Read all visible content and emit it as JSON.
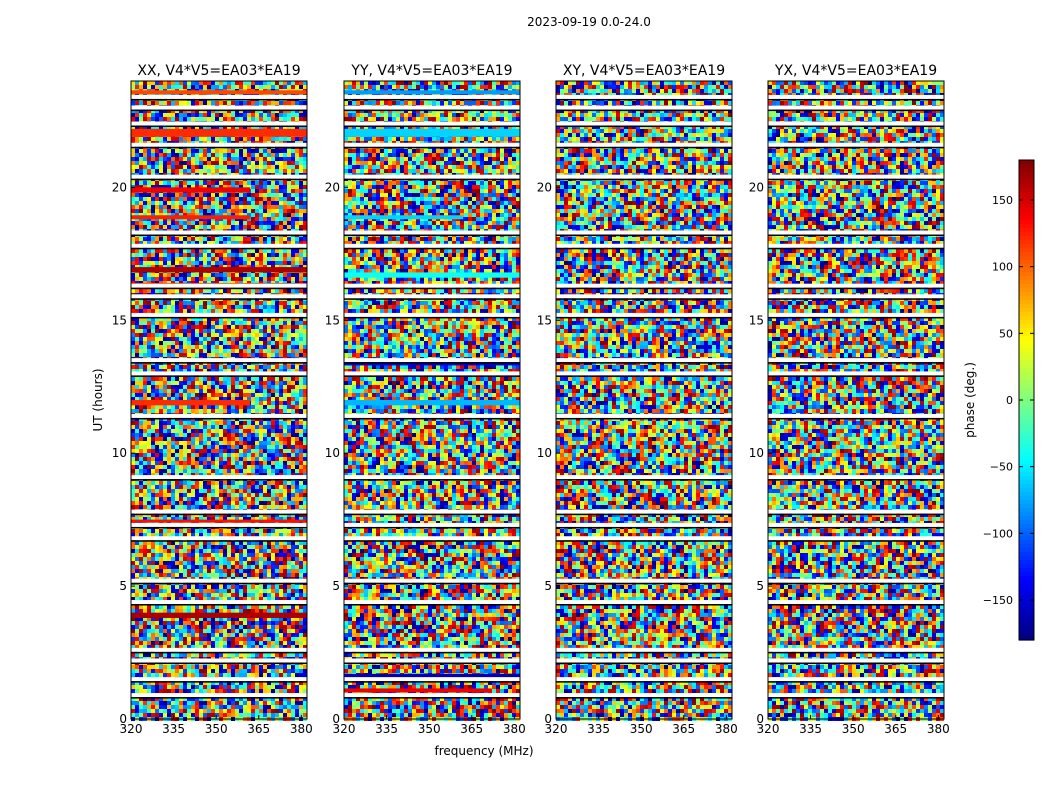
{
  "chart_data": {
    "type": "heatmap",
    "suptitle": "2023-09-19 0.0-24.0",
    "xlabel": "frequency (MHz)",
    "ylabel": "UT (hours)",
    "xlim": [
      320,
      382
    ],
    "ylim": [
      0,
      24
    ],
    "x_ticks": [
      320,
      335,
      350,
      365,
      380
    ],
    "y_ticks": [
      0,
      5,
      10,
      15,
      20
    ],
    "colorbar": {
      "label": "phase (deg.)",
      "range": [
        -180,
        180
      ],
      "ticks": [
        150,
        100,
        50,
        0,
        -50,
        -100,
        -150
      ],
      "tick_labels": [
        "150",
        "100",
        "50",
        "0",
        "−50",
        "−100",
        "−150"
      ],
      "colormap": "jet",
      "colors": [
        "#00007f",
        "#0000ff",
        "#007fff",
        "#00ffff",
        "#7fff7f",
        "#ffff00",
        "#ff7f00",
        "#ff0000",
        "#7f0000"
      ]
    },
    "panels": [
      {
        "title": "XX, V4*V5=EA03*EA19",
        "flagged_rows_ut": [
          0.9,
          1.5,
          2.2,
          2.6,
          4.4,
          5.2,
          6.8,
          7.3,
          7.8,
          9.1,
          11.4,
          13.0,
          13.5,
          15.2,
          15.9,
          16.3,
          17.8,
          18.3,
          20.4,
          21.6,
          22.4,
          23.0,
          23.4
        ],
        "coherent_bands": [
          {
            "ut_start": 3.8,
            "ut_end": 4.0,
            "phase_deg": 165,
            "freq_end": 382
          },
          {
            "ut_start": 7.4,
            "ut_end": 7.5,
            "phase_deg": 130,
            "freq_end": 382
          },
          {
            "ut_start": 11.8,
            "ut_end": 12.0,
            "phase_deg": 120,
            "freq_end": 362
          },
          {
            "ut_start": 16.2,
            "ut_end": 16.4,
            "phase_deg": 120,
            "freq_end": 382
          },
          {
            "ut_start": 16.8,
            "ut_end": 17.0,
            "phase_deg": 165,
            "freq_end": 382
          },
          {
            "ut_start": 18.8,
            "ut_end": 18.95,
            "phase_deg": 125,
            "freq_end": 362
          },
          {
            "ut_start": 19.8,
            "ut_end": 20.0,
            "phase_deg": 140,
            "freq_end": 362
          },
          {
            "ut_start": 21.9,
            "ut_end": 22.2,
            "phase_deg": 120,
            "freq_end": 382
          },
          {
            "ut_start": 23.5,
            "ut_end": 23.65,
            "phase_deg": 110,
            "freq_end": 382
          }
        ]
      },
      {
        "title": "YY, V4*V5=EA03*EA19",
        "flagged_rows_ut": [
          0.9,
          1.5,
          2.2,
          2.6,
          4.4,
          5.2,
          6.8,
          7.3,
          7.8,
          9.1,
          11.4,
          13.0,
          13.5,
          15.2,
          15.9,
          16.3,
          17.8,
          18.3,
          20.4,
          21.6,
          22.4,
          23.0,
          23.4
        ],
        "coherent_bands": [
          {
            "ut_start": 1.0,
            "ut_end": 1.15,
            "phase_deg": 140,
            "freq_end": 372
          },
          {
            "ut_start": 1.5,
            "ut_end": 1.7,
            "phase_deg": -160,
            "freq_end": 382
          },
          {
            "ut_start": 11.8,
            "ut_end": 12.0,
            "phase_deg": -70,
            "freq_end": 382
          },
          {
            "ut_start": 13.3,
            "ut_end": 13.45,
            "phase_deg": -150,
            "freq_end": 382
          },
          {
            "ut_start": 16.6,
            "ut_end": 16.8,
            "phase_deg": -40,
            "freq_end": 382
          },
          {
            "ut_start": 18.8,
            "ut_end": 18.95,
            "phase_deg": -60,
            "freq_end": 362
          },
          {
            "ut_start": 21.9,
            "ut_end": 22.2,
            "phase_deg": -60,
            "freq_end": 382
          },
          {
            "ut_start": 23.5,
            "ut_end": 23.65,
            "phase_deg": -80,
            "freq_end": 382
          }
        ]
      },
      {
        "title": "XY, V4*V5=EA03*EA19",
        "flagged_rows_ut": [
          0.9,
          1.5,
          2.2,
          2.6,
          4.4,
          5.2,
          6.8,
          7.3,
          7.8,
          9.1,
          11.4,
          13.0,
          13.5,
          15.2,
          15.9,
          16.3,
          17.8,
          18.3,
          20.4,
          21.6,
          22.4,
          23.0,
          23.4
        ],
        "coherent_bands": []
      },
      {
        "title": "YX, V4*V5=EA03*EA19",
        "flagged_rows_ut": [
          0.9,
          1.5,
          2.2,
          2.6,
          4.4,
          5.2,
          6.8,
          7.3,
          7.8,
          9.1,
          11.4,
          13.0,
          13.5,
          15.2,
          15.9,
          16.3,
          17.8,
          18.3,
          20.4,
          21.6,
          22.4,
          23.0,
          23.4
        ],
        "coherent_bands": []
      }
    ]
  }
}
